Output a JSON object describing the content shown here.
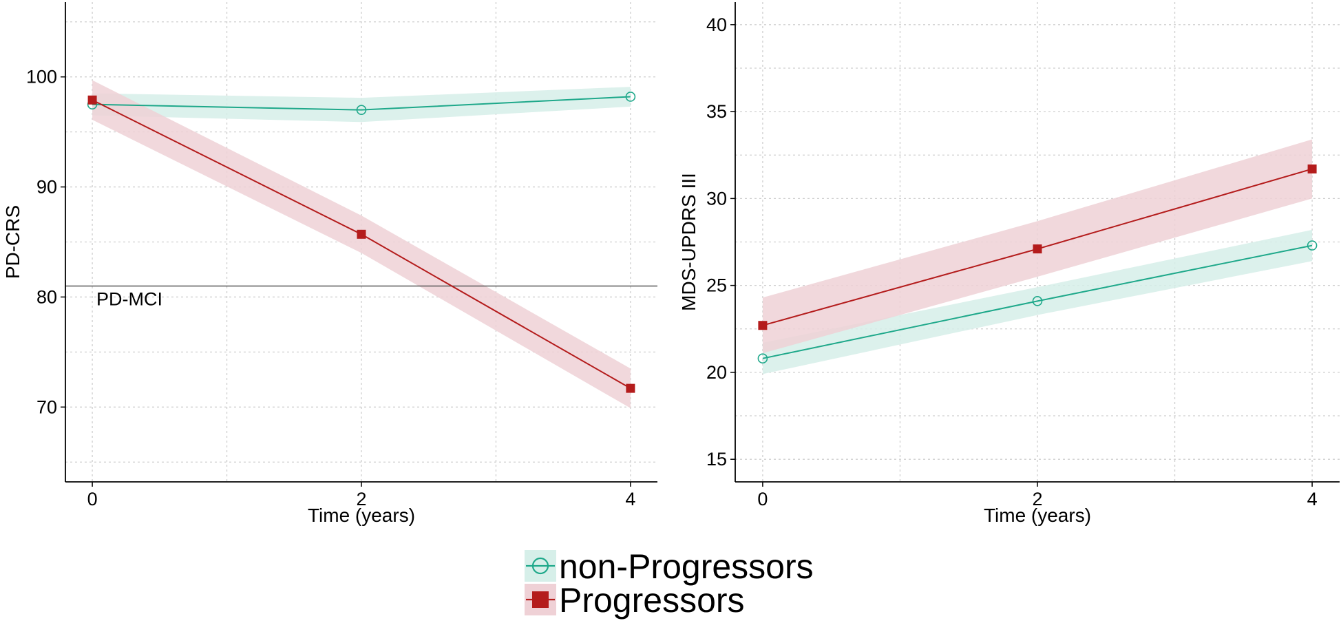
{
  "colors": {
    "non_progressors": "#1ea88a",
    "non_progressors_band": "#d6efe9",
    "progressors": "#b41c1c",
    "progressors_band": "#efd1d6",
    "grid": "#cfcfcf",
    "axis": "#000000",
    "reference_line": "#555555"
  },
  "legend": {
    "items": [
      {
        "label": "non-Progressors",
        "series": "non_progressors",
        "marker": "open-circle"
      },
      {
        "label": "Progressors",
        "series": "progressors",
        "marker": "filled-square"
      }
    ]
  },
  "chart_data": [
    {
      "type": "line",
      "panel": "left",
      "title": "",
      "xlabel": "Time (years)",
      "ylabel": "PD-CRS",
      "xlim": [
        -0.2,
        4.2
      ],
      "ylim": [
        63.2,
        106.8
      ],
      "x_ticks": [
        0,
        2,
        4
      ],
      "y_ticks": [
        70,
        80,
        90,
        100
      ],
      "grid": true,
      "series": [
        {
          "key": "non_progressors",
          "name": "non-Progressors",
          "x": [
            0,
            2,
            4
          ],
          "values": [
            97.5,
            97.0,
            98.2
          ],
          "lower": [
            96.5,
            95.9,
            97.3
          ],
          "upper": [
            98.5,
            98.1,
            99.1
          ]
        },
        {
          "key": "progressors",
          "name": "Progressors",
          "x": [
            0,
            2,
            4
          ],
          "values": [
            97.9,
            85.7,
            71.7
          ],
          "lower": [
            96.1,
            84.0,
            69.9
          ],
          "upper": [
            99.7,
            87.4,
            73.5
          ]
        }
      ],
      "reference_line": {
        "y": 81.0,
        "label": "PD-MCI"
      }
    },
    {
      "type": "line",
      "panel": "right",
      "title": "",
      "xlabel": "Time (years)",
      "ylabel": "MDS-UPDRS III",
      "xlim": [
        -0.2,
        4.2
      ],
      "ylim": [
        13.7,
        41.3
      ],
      "x_ticks": [
        0,
        2,
        4
      ],
      "y_ticks": [
        15,
        20,
        25,
        30,
        35,
        40
      ],
      "grid": true,
      "series": [
        {
          "key": "non_progressors",
          "name": "non-Progressors",
          "x": [
            0,
            2,
            4
          ],
          "values": [
            20.8,
            24.1,
            27.3
          ],
          "lower": [
            19.9,
            23.3,
            26.4
          ],
          "upper": [
            21.7,
            24.9,
            28.2
          ]
        },
        {
          "key": "progressors",
          "name": "Progressors",
          "x": [
            0,
            2,
            4
          ],
          "values": [
            22.7,
            27.1,
            31.7
          ],
          "lower": [
            21.1,
            25.5,
            30.0
          ],
          "upper": [
            24.3,
            28.7,
            33.4
          ]
        }
      ]
    }
  ]
}
